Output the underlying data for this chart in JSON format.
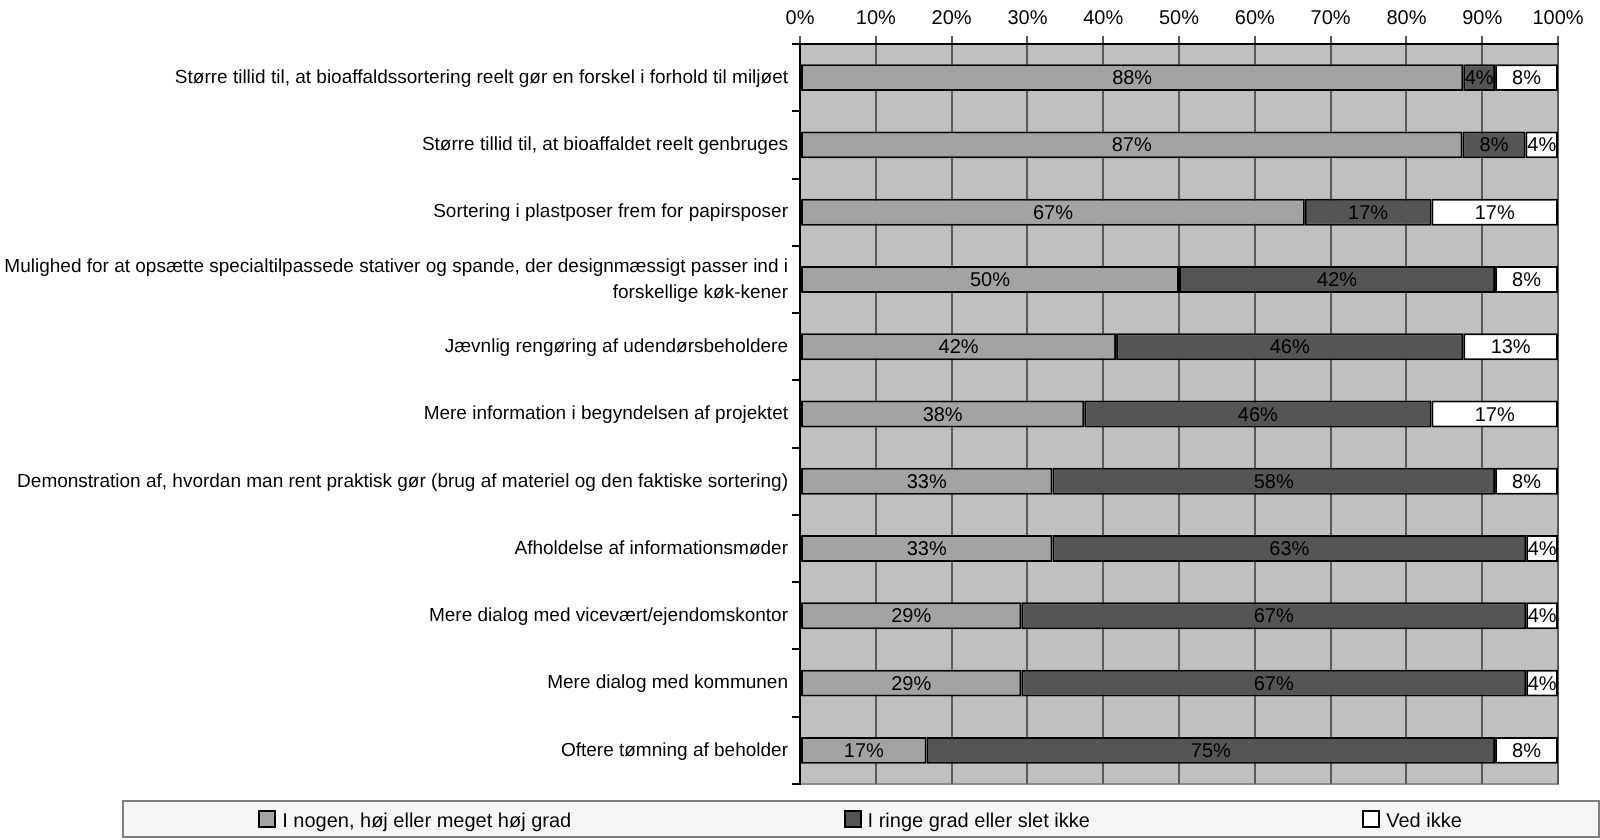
{
  "chart_data": {
    "type": "bar",
    "orientation": "horizontal",
    "stacked": true,
    "categories": [
      "Større tillid til, at bioaffaldssortering reelt gør en forskel i forhold til miljøet",
      "Større tillid til, at bioaffaldet reelt genbruges",
      "Sortering i plastposer frem for papirsposer",
      "Mulighed for at opsætte specialtilpassede stativer og spande, der designmæssigt passer ind i forskellige køk-kener",
      "Jævnlig rengøring af udendørsbeholdere",
      "Mere information i begyndelsen af projektet",
      "Demonstration af, hvordan man rent praktisk gør (brug af materiel og den faktiske sortering)",
      "Afholdelse af informationsmøder",
      "Mere dialog med vicevært/ejendomskontor",
      "Mere dialog med kommunen",
      "Oftere tømning af beholder"
    ],
    "series": [
      {
        "name": "I nogen, høj eller meget høj grad",
        "color": "#a3a3a3",
        "values": [
          87.5,
          87.4,
          66.6,
          50.0,
          41.7,
          37.5,
          33.3,
          33.3,
          29.2,
          29.2,
          16.7
        ],
        "value_labels": [
          "88%",
          "87%",
          "67%",
          "50%",
          "42%",
          "38%",
          "33%",
          "33%",
          "29%",
          "29%",
          "17%"
        ]
      },
      {
        "name": "I ringe grad eller slet ikke",
        "color": "#555555",
        "values": [
          4.2,
          8.3,
          16.7,
          41.7,
          45.8,
          45.8,
          58.4,
          62.5,
          66.6,
          66.6,
          75.0
        ],
        "value_labels": [
          "4%",
          "8%",
          "17%",
          "42%",
          "46%",
          "46%",
          "58%",
          "63%",
          "67%",
          "67%",
          "75%"
        ]
      },
      {
        "name": "Ved ikke",
        "color": "#ffffff",
        "values": [
          8.3,
          4.3,
          16.7,
          8.3,
          12.5,
          16.7,
          8.3,
          4.2,
          4.2,
          4.2,
          8.3
        ],
        "value_labels": [
          "8%",
          "4%",
          "17%",
          "8%",
          "13%",
          "17%",
          "8%",
          "4%",
          "4%",
          "4%",
          "8%"
        ]
      }
    ],
    "xlim": [
      0,
      100
    ],
    "xticks": [
      {
        "value": 0,
        "label": "0%"
      },
      {
        "value": 10,
        "label": "10%"
      },
      {
        "value": 20,
        "label": "20%"
      },
      {
        "value": 30,
        "label": "30%"
      },
      {
        "value": 40,
        "label": "40%"
      },
      {
        "value": 50,
        "label": "50%"
      },
      {
        "value": 60,
        "label": "60%"
      },
      {
        "value": 70,
        "label": "70%"
      },
      {
        "value": 80,
        "label": "80%"
      },
      {
        "value": 90,
        "label": "90%"
      },
      {
        "value": 100,
        "label": "100%"
      }
    ],
    "grid": "x",
    "legend": "bottom"
  }
}
